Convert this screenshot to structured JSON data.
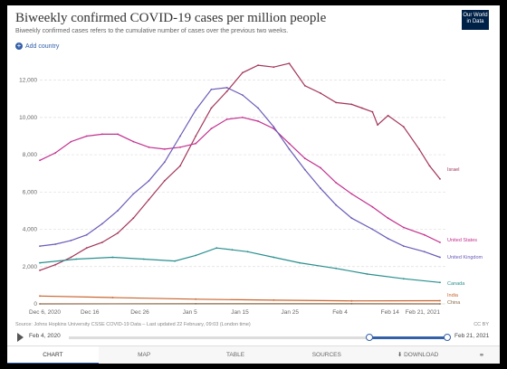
{
  "header": {
    "title": "Biweekly confirmed COVID-19 cases per million people",
    "subtitle": "Biweekly confirmed cases refers to the cumulative number of cases over the previous two weeks.",
    "logo_line1": "Our World",
    "logo_line2": "in Data",
    "add_country_label": "Add country"
  },
  "footer": {
    "source": "Source: Johns Hopkins University CSSE COVID-19 Data – Last updated 22 February, 09:03 (London time)",
    "license": "CC BY"
  },
  "timeline": {
    "start_label": "Feb 4, 2020",
    "end_label": "Feb 21, 2021",
    "selected_start": "Dec 6, 2020",
    "selected_end": "Feb 21, 2021"
  },
  "tabs": [
    "CHART",
    "MAP",
    "TABLE",
    "SOURCES",
    "DOWNLOAD"
  ],
  "colors": {
    "israel": "#a2345a",
    "united_states": "#c2308f",
    "united_kingdom": "#6b5bb8",
    "canada": "#2a8f8f",
    "india": "#c8642d",
    "china": "#8a6a4a",
    "accent": "#3360a9"
  },
  "chart_data": {
    "type": "line",
    "title": "Biweekly confirmed COVID-19 cases per million people",
    "x_tick_labels": [
      "Dec 6, 2020",
      "Dec 16",
      "Dec 26",
      "Jan 5",
      "Jan 15",
      "Jan 25",
      "Feb 4",
      "Feb 14",
      "Feb 21, 2021"
    ],
    "ylim": [
      0,
      13000
    ],
    "y_ticks": [
      0,
      2000,
      4000,
      6000,
      8000,
      10000,
      12000
    ],
    "y_tick_labels": [
      "0",
      "2,000",
      "4,000",
      "6,000",
      "8,000",
      "10,000",
      "12,000"
    ],
    "grid": true,
    "x_start": "2020-12-06",
    "x_end": "2021-02-21",
    "series": [
      {
        "name": "Israel",
        "color_key": "israel",
        "x": [
          "2020-12-06",
          "2020-12-09",
          "2020-12-12",
          "2020-12-15",
          "2020-12-18",
          "2020-12-21",
          "2020-12-24",
          "2020-12-27",
          "2020-12-30",
          "2021-01-02",
          "2021-01-05",
          "2021-01-08",
          "2021-01-11",
          "2021-01-14",
          "2021-01-17",
          "2021-01-20",
          "2021-01-23",
          "2021-01-26",
          "2021-01-29",
          "2021-02-01",
          "2021-02-04",
          "2021-02-06",
          "2021-02-08",
          "2021-02-09",
          "2021-02-11",
          "2021-02-14",
          "2021-02-17",
          "2021-02-19",
          "2021-02-21"
        ],
        "y": [
          1800,
          2100,
          2500,
          3000,
          3300,
          3800,
          4600,
          5600,
          6600,
          7400,
          9000,
          10500,
          11400,
          12400,
          12800,
          12700,
          12900,
          11700,
          11300,
          10800,
          10700,
          10500,
          10300,
          9600,
          10100,
          9500,
          8300,
          7400,
          6700
        ]
      },
      {
        "name": "United States",
        "color_key": "united_states",
        "x": [
          "2020-12-06",
          "2020-12-09",
          "2020-12-12",
          "2020-12-15",
          "2020-12-18",
          "2020-12-21",
          "2020-12-24",
          "2020-12-27",
          "2020-12-30",
          "2021-01-02",
          "2021-01-05",
          "2021-01-08",
          "2021-01-11",
          "2021-01-14",
          "2021-01-17",
          "2021-01-20",
          "2021-01-23",
          "2021-01-26",
          "2021-01-29",
          "2021-02-01",
          "2021-02-04",
          "2021-02-08",
          "2021-02-11",
          "2021-02-14",
          "2021-02-18",
          "2021-02-21"
        ],
        "y": [
          7700,
          8100,
          8700,
          9000,
          9100,
          9100,
          8700,
          8400,
          8300,
          8400,
          8600,
          9400,
          9900,
          10000,
          9800,
          9400,
          8600,
          7800,
          7300,
          6500,
          5900,
          5200,
          4600,
          4100,
          3700,
          3300
        ]
      },
      {
        "name": "United Kingdom",
        "color_key": "united_kingdom",
        "x": [
          "2020-12-06",
          "2020-12-09",
          "2020-12-12",
          "2020-12-15",
          "2020-12-18",
          "2020-12-21",
          "2020-12-24",
          "2020-12-27",
          "2020-12-30",
          "2021-01-02",
          "2021-01-05",
          "2021-01-08",
          "2021-01-11",
          "2021-01-14",
          "2021-01-17",
          "2021-01-20",
          "2021-01-23",
          "2021-01-26",
          "2021-01-29",
          "2021-02-01",
          "2021-02-04",
          "2021-02-08",
          "2021-02-11",
          "2021-02-14",
          "2021-02-18",
          "2021-02-21"
        ],
        "y": [
          3100,
          3200,
          3400,
          3700,
          4300,
          5000,
          5900,
          6600,
          7600,
          9000,
          10400,
          11500,
          11600,
          11200,
          10500,
          9500,
          8300,
          7200,
          6200,
          5300,
          4600,
          4000,
          3500,
          3100,
          2800,
          2500
        ]
      },
      {
        "name": "Canada",
        "color_key": "canada",
        "x": [
          "2020-12-06",
          "2020-12-13",
          "2020-12-20",
          "2020-12-26",
          "2021-01-01",
          "2021-01-05",
          "2021-01-09",
          "2021-01-12",
          "2021-01-15",
          "2021-01-20",
          "2021-01-25",
          "2021-02-01",
          "2021-02-07",
          "2021-02-14",
          "2021-02-21"
        ],
        "y": [
          2200,
          2400,
          2500,
          2400,
          2300,
          2600,
          3000,
          2900,
          2800,
          2500,
          2200,
          1900,
          1600,
          1350,
          1150
        ]
      },
      {
        "name": "India",
        "color_key": "india",
        "x": [
          "2020-12-06",
          "2020-12-20",
          "2021-01-05",
          "2021-01-20",
          "2021-02-04",
          "2021-02-21"
        ],
        "y": [
          420,
          340,
          250,
          200,
          160,
          170
        ]
      },
      {
        "name": "China",
        "color_key": "china",
        "x": [
          "2020-12-06",
          "2021-01-05",
          "2021-02-04",
          "2021-02-21"
        ],
        "y": [
          2,
          3,
          3,
          1
        ]
      }
    ]
  }
}
